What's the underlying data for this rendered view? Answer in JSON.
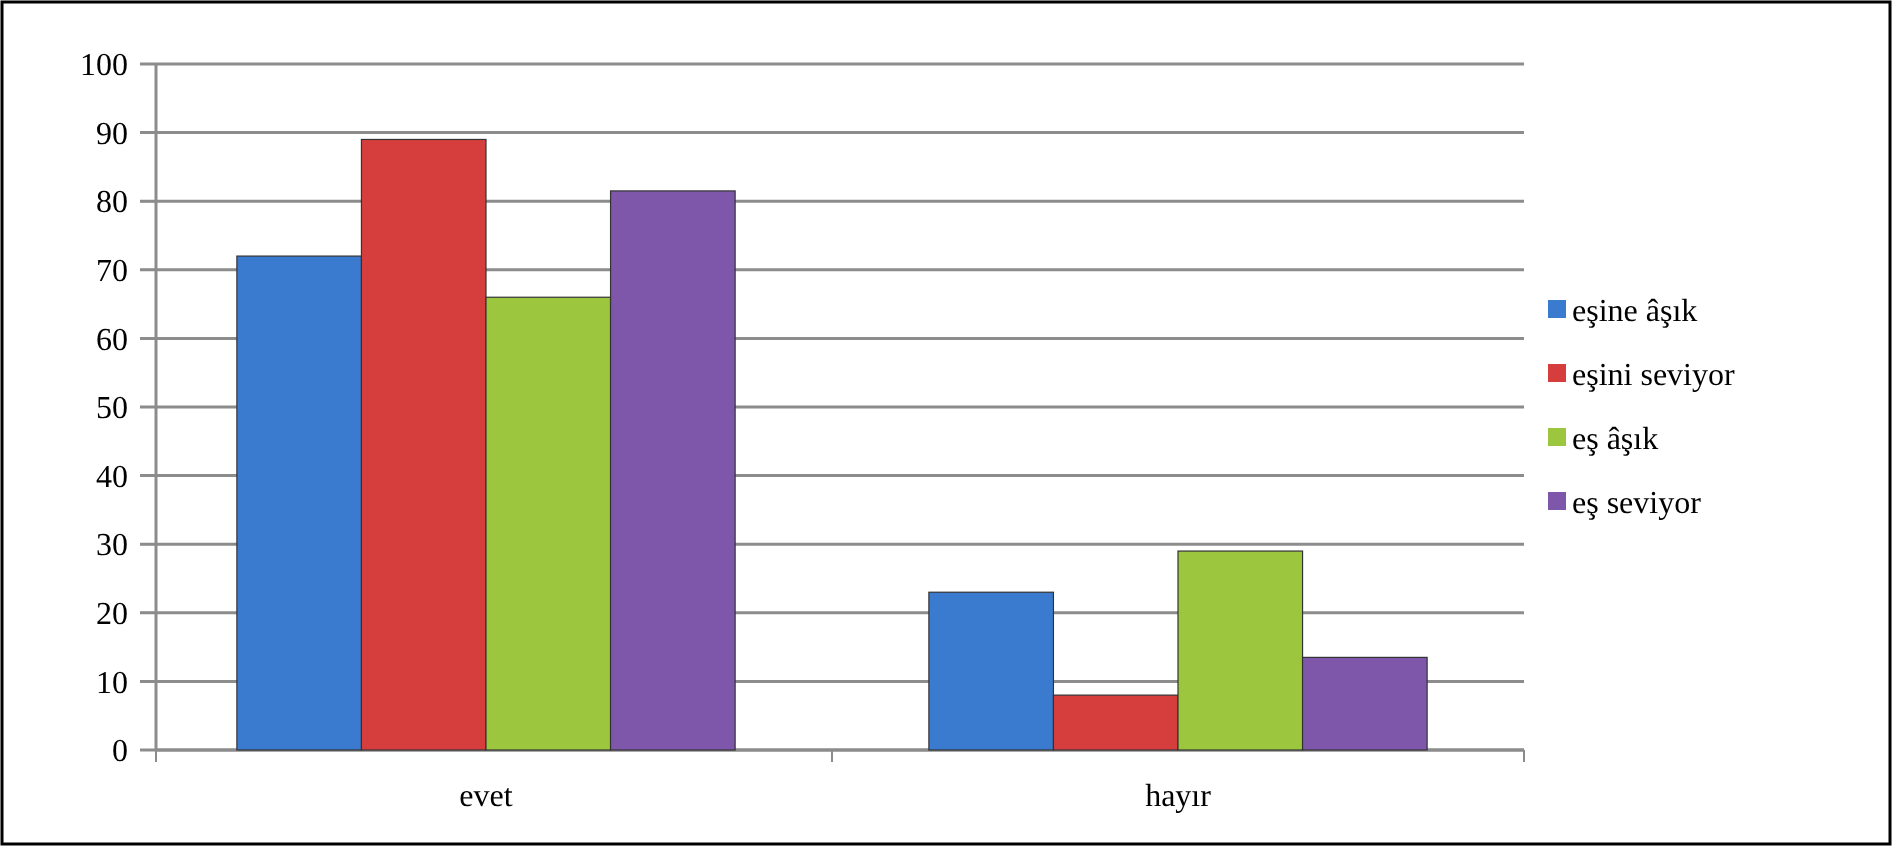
{
  "chart_data": {
    "type": "bar",
    "categories": [
      "evet",
      "hayır"
    ],
    "series": [
      {
        "name": "eşine âşık",
        "color": "#3a7bd0",
        "values": [
          72,
          23
        ]
      },
      {
        "name": "eşini seviyor",
        "color": "#d63e3e",
        "values": [
          89,
          8
        ]
      },
      {
        "name": "eş âşık",
        "color": "#9cc63e",
        "values": [
          66,
          29
        ]
      },
      {
        "name": "eş seviyor",
        "color": "#7e57ab",
        "values": [
          81.5,
          13.5
        ]
      }
    ],
    "ylim": [
      0,
      100
    ],
    "yticks": [
      0,
      10,
      20,
      30,
      40,
      50,
      60,
      70,
      80,
      90,
      100
    ],
    "grid": "y",
    "legend": "right"
  }
}
